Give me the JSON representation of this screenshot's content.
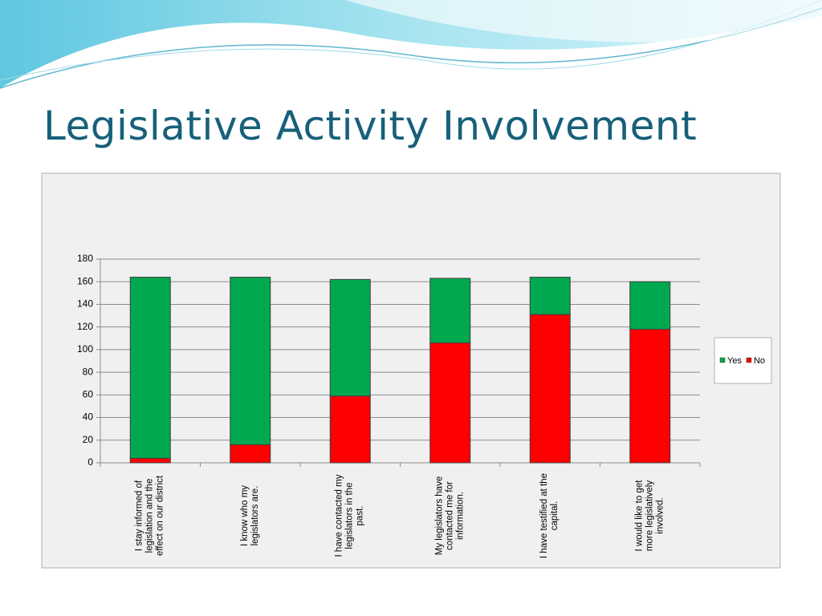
{
  "title": "Legislative Activity Involvement",
  "chart_data": {
    "type": "stacked_bar",
    "categories": [
      "I stay informed of legislation and the effect on our district",
      "I know who my legislators are.",
      "I have contacted my legislators in the past.",
      "My legislators have contacted me for information.",
      "I have testified at the capital.",
      "I would like to get more legislatively involved."
    ],
    "series": [
      {
        "name": "Yes",
        "color": "#00a84f",
        "values": [
          160,
          148,
          103,
          57,
          33,
          42
        ]
      },
      {
        "name": "No",
        "color": "#ff0000",
        "values": [
          4,
          16,
          59,
          106,
          131,
          118
        ]
      }
    ],
    "stack_order": [
      "No",
      "Yes"
    ],
    "ylim": [
      0,
      180
    ],
    "yticks": [
      0,
      20,
      40,
      60,
      80,
      100,
      120,
      140,
      160,
      180
    ],
    "grid": true,
    "legend": "right"
  }
}
